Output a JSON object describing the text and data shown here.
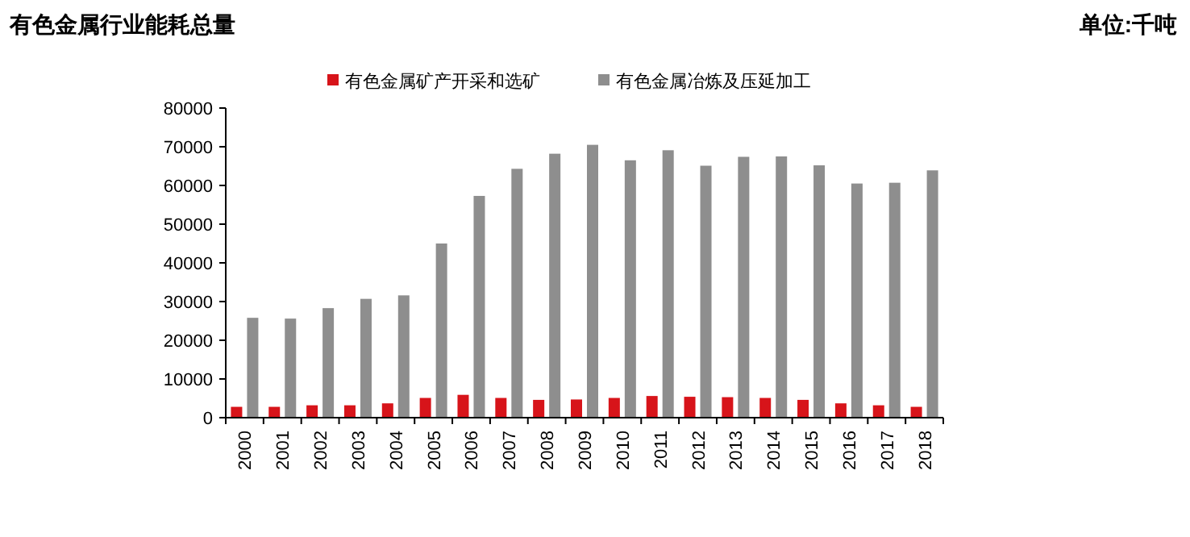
{
  "chart_data": {
    "type": "bar",
    "title": "有色金属行业能耗总量",
    "subtitle": "单位:千吨",
    "categories": [
      "2000",
      "2001",
      "2002",
      "2003",
      "2004",
      "2005",
      "2006",
      "2007",
      "2008",
      "2009",
      "2010",
      "2011",
      "2012",
      "2013",
      "2014",
      "2015",
      "2016",
      "2017",
      "2018"
    ],
    "series": [
      {
        "name": "有色金属矿产开采和选矿",
        "color": "#d7141a",
        "values": [
          2800,
          2800,
          3200,
          3200,
          3700,
          5100,
          5900,
          5100,
          4600,
          4700,
          5100,
          5600,
          5400,
          5300,
          5100,
          4600,
          3700,
          3200,
          2800
        ]
      },
      {
        "name": "有色金属冶炼及压延加工",
        "color": "#8e8e8e",
        "values": [
          25800,
          25600,
          28300,
          30700,
          31600,
          45000,
          57300,
          64300,
          68200,
          70500,
          66500,
          69100,
          65100,
          67400,
          67500,
          65200,
          60500,
          60700,
          63900
        ]
      }
    ],
    "ylim": [
      0,
      80000
    ],
    "yticks": [
      0,
      10000,
      20000,
      30000,
      40000,
      50000,
      60000,
      70000,
      80000
    ],
    "legend": "top",
    "grid": false
  }
}
